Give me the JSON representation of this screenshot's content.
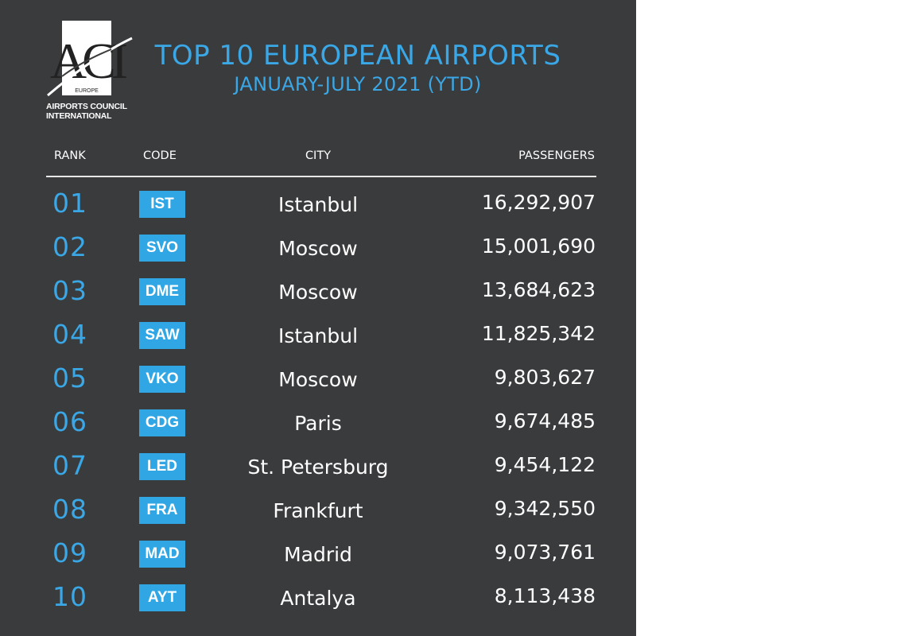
{
  "logo": {
    "letters": "ACI",
    "sub": "EUROPE",
    "caption": [
      "AIRPORTS COUNCIL",
      "INTERNATIONAL"
    ]
  },
  "header": {
    "title": "TOP 10 EUROPEAN AIRPORTS",
    "subtitle": "JANUARY-JULY 2021 (YTD)"
  },
  "columns": {
    "rank": "RANK",
    "code": "CODE",
    "city": "CITY",
    "passengers": "PASSENGERS"
  },
  "rows": [
    {
      "rank": "01",
      "code": "IST",
      "city": "Istanbul",
      "passengers": "16,292,907"
    },
    {
      "rank": "02",
      "code": "SVO",
      "city": "Moscow",
      "passengers": "15,001,690"
    },
    {
      "rank": "03",
      "code": "DME",
      "city": "Moscow",
      "passengers": "13,684,623"
    },
    {
      "rank": "04",
      "code": "SAW",
      "city": "Istanbul",
      "passengers": "11,825,342"
    },
    {
      "rank": "05",
      "code": "VKO",
      "city": "Moscow",
      "passengers": "9,803,627"
    },
    {
      "rank": "06",
      "code": "CDG",
      "city": "Paris",
      "passengers": "9,674,485"
    },
    {
      "rank": "07",
      "code": "LED",
      "city": "St. Petersburg",
      "passengers": "9,454,122"
    },
    {
      "rank": "08",
      "code": "FRA",
      "city": "Frankfurt",
      "passengers": "9,342,550"
    },
    {
      "rank": "09",
      "code": "MAD",
      "city": "Madrid",
      "passengers": "9,073,761"
    },
    {
      "rank": "10",
      "code": "AYT",
      "city": "Antalya",
      "passengers": "8,113,438"
    }
  ],
  "colors": {
    "background": "#3a3b3d",
    "accent": "#3aa7e6",
    "code_badge": "#31a6e4",
    "text": "#ffffff"
  }
}
